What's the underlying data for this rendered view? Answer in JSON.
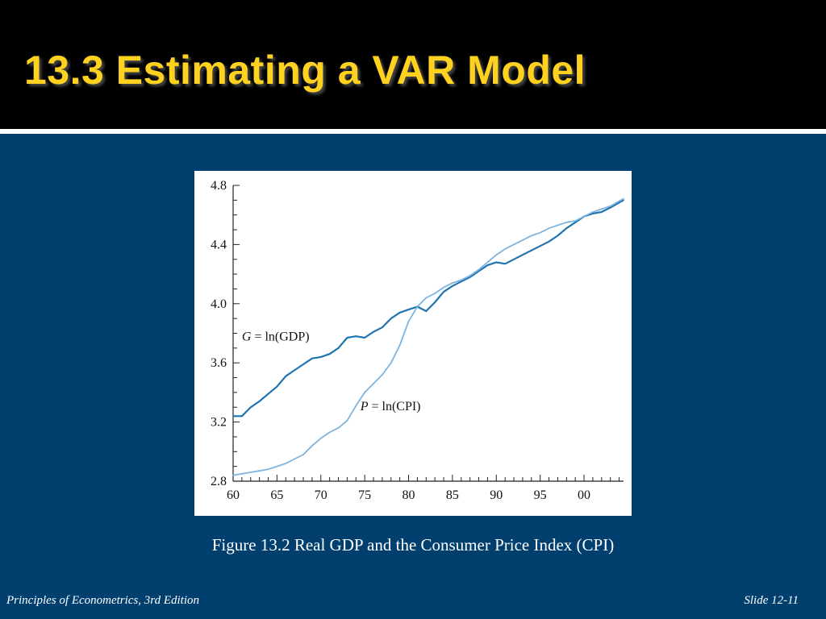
{
  "slide": {
    "title": "13.3  Estimating a VAR Model",
    "caption": "Figure 13.2 Real GDP and the Consumer Price Index (CPI)",
    "footer_left": "Principles of Econometrics, 3rd Edition",
    "footer_right": "Slide 12-11"
  },
  "colors": {
    "background": "#003f6e",
    "title": "#ffd21f",
    "gdp_line": "#1f74b0",
    "cpi_line": "#7fb4de"
  },
  "chart_data": {
    "type": "line",
    "title": "",
    "xlabel": "",
    "ylabel": "",
    "xlim": [
      1960,
      2004.5
    ],
    "ylim": [
      2.8,
      4.8
    ],
    "x_ticks": [
      1960,
      1965,
      1970,
      1975,
      1980,
      1985,
      1990,
      1995,
      2000
    ],
    "x_tick_labels": [
      "60",
      "65",
      "70",
      "75",
      "80",
      "85",
      "90",
      "95",
      "00"
    ],
    "y_ticks": [
      2.8,
      3.2,
      3.6,
      4.0,
      4.4,
      4.8
    ],
    "y_tick_labels": [
      "2.8",
      "3.2",
      "3.6",
      "4.0",
      "4.4",
      "4.8"
    ],
    "grid": false,
    "legend": "inline labels",
    "series": [
      {
        "name": "G = ln(GDP)",
        "label_prefix": "G",
        "label_rest": " = ln(GDP)",
        "label_at": [
          1961,
          3.75
        ],
        "x": [
          1960,
          1961,
          1962,
          1963,
          1964,
          1965,
          1966,
          1967,
          1968,
          1969,
          1970,
          1971,
          1972,
          1973,
          1974,
          1975,
          1976,
          1977,
          1978,
          1979,
          1980,
          1981,
          1982,
          1983,
          1984,
          1985,
          1986,
          1987,
          1988,
          1989,
          1990,
          1991,
          1992,
          1993,
          1994,
          1995,
          1996,
          1997,
          1998,
          1999,
          2000,
          2001,
          2002,
          2003,
          2004.5
        ],
        "y": [
          3.24,
          3.24,
          3.3,
          3.34,
          3.39,
          3.44,
          3.51,
          3.55,
          3.59,
          3.63,
          3.64,
          3.66,
          3.7,
          3.77,
          3.78,
          3.77,
          3.81,
          3.84,
          3.9,
          3.94,
          3.96,
          3.98,
          3.95,
          4.01,
          4.08,
          4.12,
          4.15,
          4.18,
          4.22,
          4.26,
          4.28,
          4.27,
          4.3,
          4.33,
          4.36,
          4.39,
          4.42,
          4.46,
          4.51,
          4.55,
          4.59,
          4.61,
          4.62,
          4.65,
          4.7
        ]
      },
      {
        "name": "P = ln(CPI)",
        "label_prefix": "P",
        "label_rest": " = ln(CPI)",
        "label_at": [
          1974.5,
          3.28
        ],
        "x": [
          1960,
          1961,
          1962,
          1963,
          1964,
          1965,
          1966,
          1967,
          1968,
          1969,
          1970,
          1971,
          1972,
          1973,
          1974,
          1975,
          1976,
          1977,
          1978,
          1979,
          1980,
          1981,
          1982,
          1983,
          1984,
          1985,
          1986,
          1987,
          1988,
          1989,
          1990,
          1991,
          1992,
          1993,
          1994,
          1995,
          1996,
          1997,
          1998,
          1999,
          2000,
          2001,
          2002,
          2003,
          2004.5
        ],
        "y": [
          2.84,
          2.85,
          2.86,
          2.87,
          2.88,
          2.9,
          2.92,
          2.95,
          2.98,
          3.04,
          3.09,
          3.13,
          3.16,
          3.21,
          3.31,
          3.4,
          3.46,
          3.52,
          3.6,
          3.72,
          3.88,
          3.98,
          4.04,
          4.07,
          4.11,
          4.14,
          4.16,
          4.19,
          4.23,
          4.28,
          4.33,
          4.37,
          4.4,
          4.43,
          4.46,
          4.48,
          4.51,
          4.53,
          4.55,
          4.56,
          4.59,
          4.62,
          4.64,
          4.66,
          4.71
        ]
      }
    ]
  }
}
